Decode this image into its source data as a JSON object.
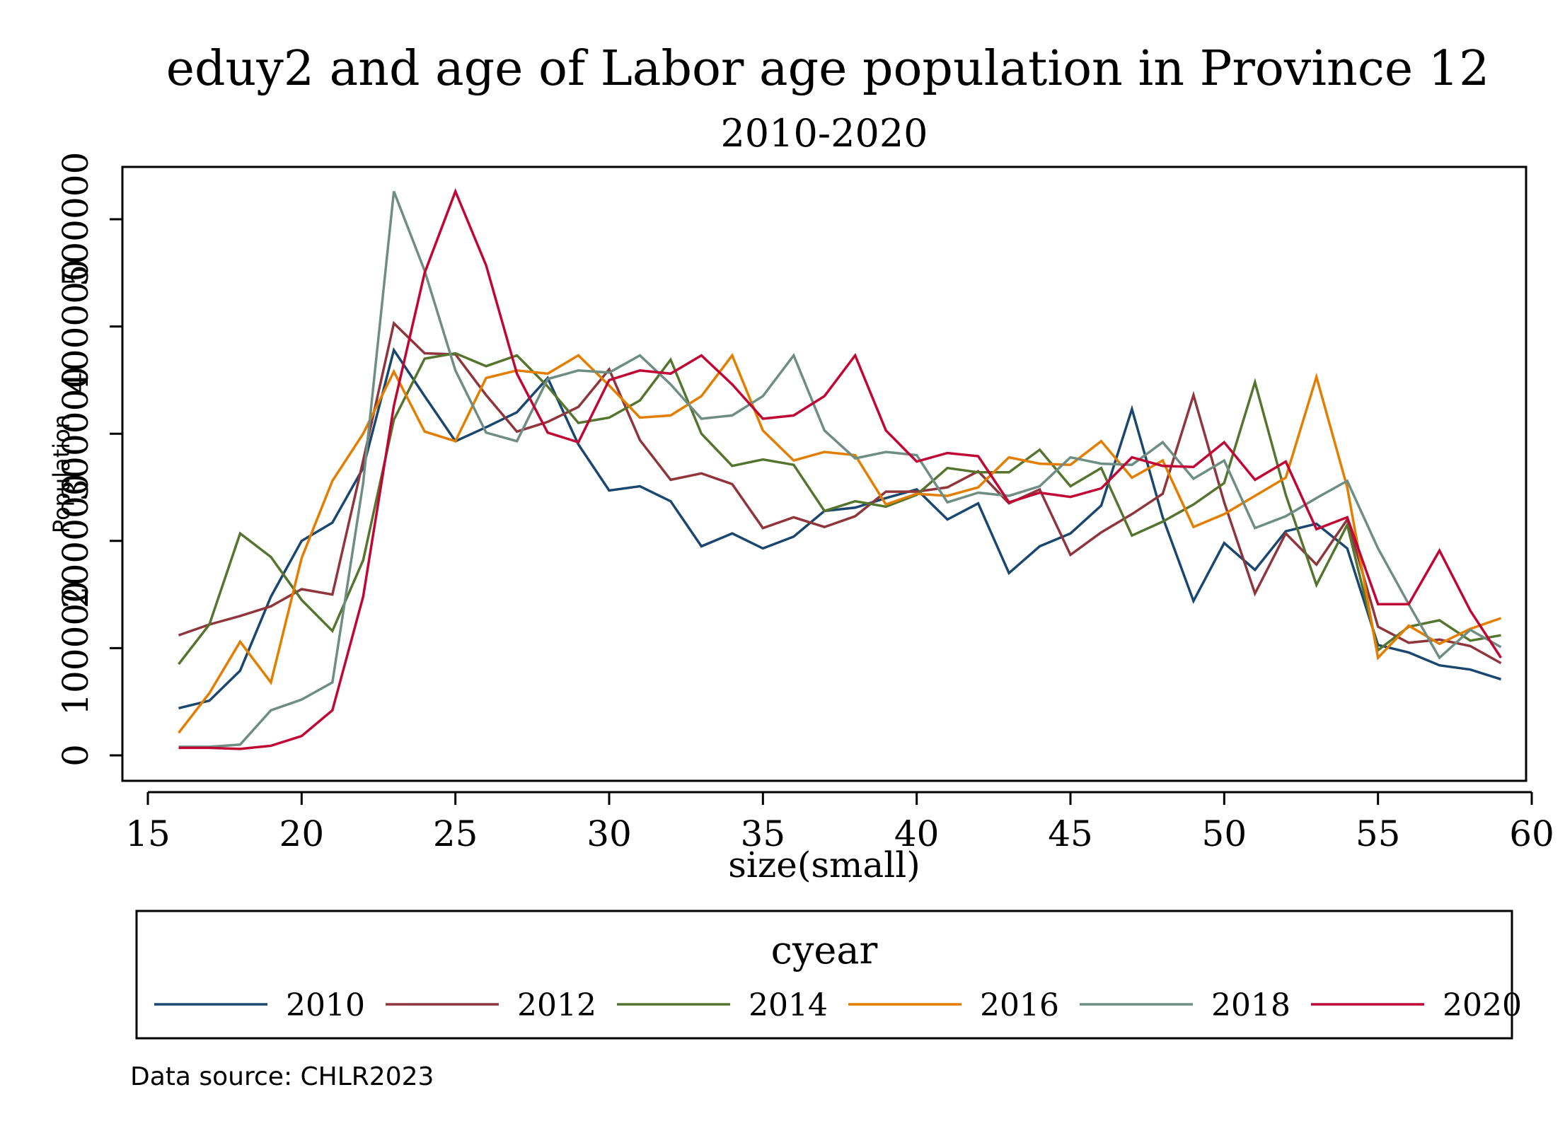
{
  "chart_data": {
    "type": "line",
    "title": "eduy2 and age of Labor age population in Province 12",
    "subtitle": "2010-2020",
    "xlabel": "size(small)",
    "ylabel": "Population",
    "xlim": [
      15,
      60
    ],
    "ylim": [
      0,
      500000
    ],
    "x_ticks": [
      15,
      20,
      25,
      30,
      35,
      40,
      45,
      50,
      55,
      60
    ],
    "y_ticks": [
      0,
      100000,
      200000,
      300000,
      400000,
      500000
    ],
    "y_tick_labels": [
      "0",
      "100000",
      "200000",
      "300000",
      "400000",
      "500000"
    ],
    "grid": false,
    "legend_title": "cyear",
    "legend_position": "bottom",
    "source_note": "Data source: CHLR2023",
    "x": [
      16,
      17,
      18,
      19,
      20,
      21,
      22,
      23,
      24,
      25,
      26,
      27,
      28,
      29,
      30,
      31,
      32,
      33,
      34,
      35,
      36,
      37,
      38,
      39,
      40,
      41,
      42,
      43,
      44,
      45,
      46,
      47,
      48,
      49,
      50,
      51,
      52,
      53,
      54,
      55,
      56,
      57,
      58,
      59
    ],
    "series": [
      {
        "name": "2010",
        "color": "#1a476f",
        "values": [
          44000,
          51000,
          79000,
          148000,
          200000,
          217000,
          268000,
          378000,
          335000,
          293000,
          306000,
          320000,
          352000,
          290000,
          247000,
          251000,
          237000,
          195000,
          207000,
          193000,
          204000,
          228000,
          231000,
          240000,
          248000,
          220000,
          235000,
          170000,
          195000,
          207000,
          233000,
          323000,
          222000,
          144000,
          198000,
          173000,
          209000,
          216000,
          193000,
          103000,
          96000,
          84000,
          80000,
          71000
        ]
      },
      {
        "name": "2012",
        "color": "#90353b",
        "values": [
          112000,
          122000,
          130000,
          139000,
          155000,
          150000,
          275000,
          403000,
          375000,
          374000,
          336000,
          302000,
          311000,
          325000,
          360000,
          294000,
          257000,
          263000,
          253000,
          212000,
          222000,
          213000,
          223000,
          246000,
          246000,
          250000,
          265000,
          235000,
          248000,
          187000,
          208000,
          225000,
          244000,
          336000,
          236000,
          151000,
          207000,
          178000,
          220000,
          120000,
          105000,
          108000,
          102000,
          86000
        ]
      },
      {
        "name": "2014",
        "color": "#55752f",
        "values": [
          85000,
          122000,
          207000,
          185000,
          145000,
          116000,
          182000,
          313000,
          370000,
          375000,
          363000,
          373000,
          344000,
          310000,
          315000,
          331000,
          369000,
          300000,
          270000,
          276000,
          271000,
          228000,
          237000,
          232000,
          243000,
          268000,
          264000,
          264000,
          285000,
          251000,
          268000,
          205000,
          218000,
          234000,
          254000,
          348000,
          243000,
          159000,
          215000,
          98000,
          120000,
          126000,
          107000,
          112000
        ]
      },
      {
        "name": "2016",
        "color": "#e37e00",
        "values": [
          21000,
          58000,
          106000,
          68000,
          184000,
          256000,
          300000,
          358000,
          302000,
          293000,
          352000,
          359000,
          356000,
          373000,
          345000,
          315000,
          317000,
          335000,
          373000,
          303000,
          275000,
          283000,
          280000,
          234000,
          244000,
          242000,
          250000,
          278000,
          272000,
          271000,
          293000,
          259000,
          275000,
          213000,
          225000,
          242000,
          259000,
          353000,
          250000,
          91000,
          121000,
          104000,
          118000,
          128000
        ]
      },
      {
        "name": "2018",
        "color": "#6e8e84",
        "values": [
          8000,
          8000,
          10000,
          42000,
          52000,
          68000,
          254000,
          526000,
          452000,
          359000,
          301000,
          293000,
          351000,
          359000,
          357000,
          373000,
          346000,
          314000,
          317000,
          335000,
          373000,
          303000,
          277000,
          283000,
          280000,
          236000,
          245000,
          242000,
          251000,
          278000,
          272000,
          271000,
          292000,
          258000,
          275000,
          212000,
          223000,
          240000,
          256000,
          193000,
          141000,
          91000,
          117000,
          101000
        ]
      },
      {
        "name": "2020",
        "color": "#c10534",
        "values": [
          7000,
          7000,
          6000,
          9000,
          18000,
          42000,
          148000,
          326000,
          450000,
          526000,
          457000,
          356000,
          301000,
          292000,
          350000,
          359000,
          356000,
          373000,
          346000,
          314000,
          317000,
          335000,
          373000,
          303000,
          274000,
          282000,
          279000,
          236000,
          245000,
          241000,
          249000,
          278000,
          270000,
          269000,
          292000,
          257000,
          274000,
          211000,
          222000,
          141000,
          141000,
          191000,
          135000,
          91000
        ]
      }
    ]
  }
}
